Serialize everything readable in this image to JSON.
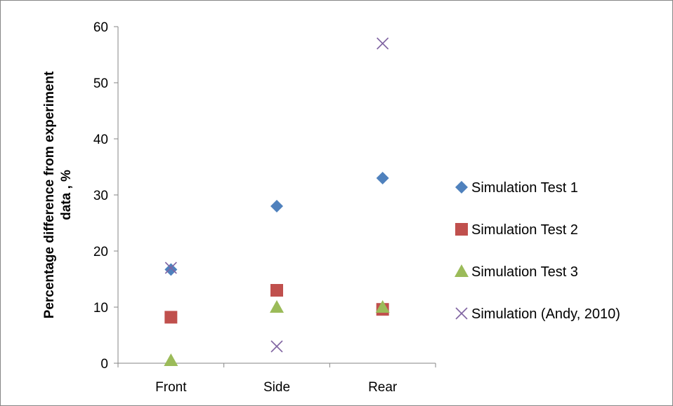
{
  "chart_data": {
    "type": "scatter",
    "categories": [
      "Front",
      "Side",
      "Rear"
    ],
    "ylabel_lines": [
      "Percentage difference from experiment",
      "data , %"
    ],
    "ylim": [
      0,
      60
    ],
    "yticks": [
      "0",
      "10",
      "20",
      "30",
      "40",
      "50",
      "60"
    ],
    "grid": false,
    "legend_position": "right",
    "series": [
      {
        "name": "Simulation Test 1",
        "marker": "diamond",
        "color": "#4f81bd",
        "values": [
          16.7,
          28,
          33
        ]
      },
      {
        "name": "Simulation Test 2",
        "marker": "square",
        "color": "#c0504d",
        "values": [
          8.2,
          13,
          9.6
        ]
      },
      {
        "name": "Simulation Test 3",
        "marker": "triangle",
        "color": "#9bbb59",
        "values": [
          0.5,
          10,
          10
        ]
      },
      {
        "name": "Simulation (Andy, 2010)",
        "marker": "x",
        "color": "#8064a2",
        "values": [
          17,
          3,
          57
        ]
      }
    ]
  }
}
